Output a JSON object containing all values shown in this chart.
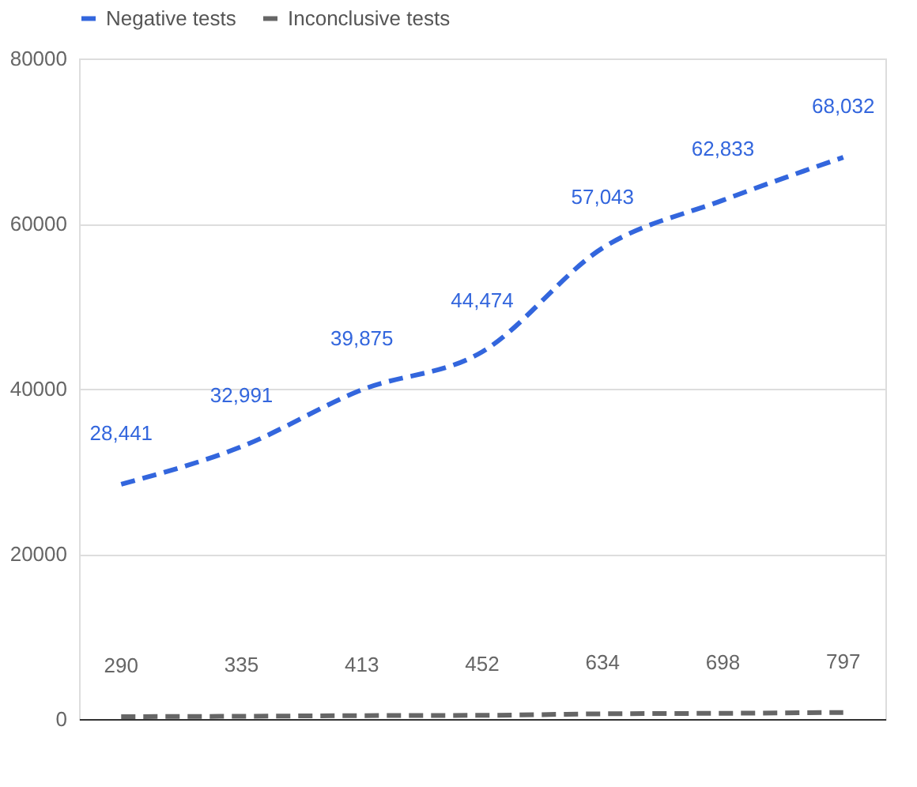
{
  "chart_data": {
    "type": "line",
    "categories": [
      null,
      null,
      null,
      null,
      null,
      null,
      null
    ],
    "series": [
      {
        "name": "Negative tests",
        "color": "#3366dd",
        "values": [
          28441,
          32991,
          39875,
          44474,
          57043,
          62833,
          68032
        ],
        "value_labels": [
          "28,441",
          "32,991",
          "39,875",
          "44,474",
          "57,043",
          "62,833",
          "68,032"
        ]
      },
      {
        "name": "Inconclusive tests",
        "color": "#666666",
        "values": [
          290,
          335,
          413,
          452,
          634,
          698,
          797
        ],
        "value_labels": [
          "290",
          "335",
          "413",
          "452",
          "634",
          "698",
          "797"
        ]
      }
    ],
    "ylim": [
      0,
      80000
    ],
    "yticks": [
      0,
      20000,
      40000,
      60000,
      80000
    ],
    "grid": "y",
    "legend": "top",
    "line_style": "dashed",
    "marker": "none",
    "tick_labels": "y"
  }
}
